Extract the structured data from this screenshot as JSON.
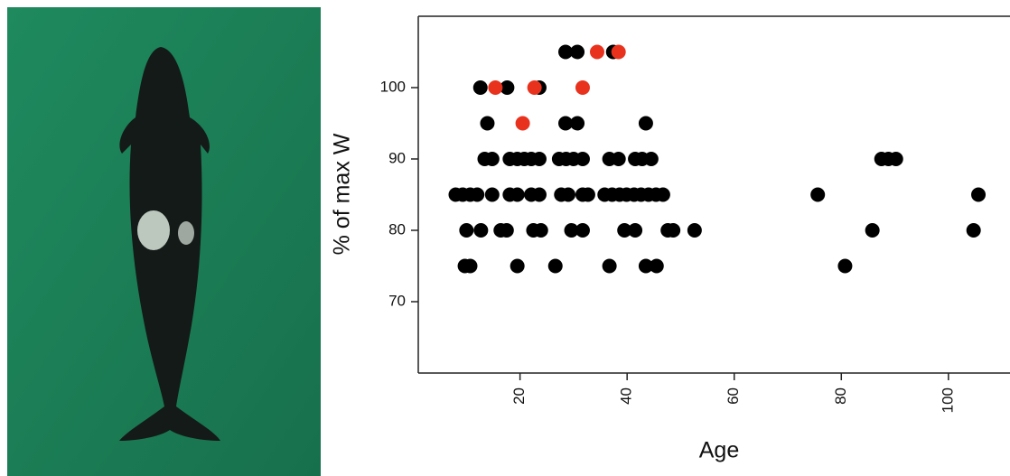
{
  "chart_data": {
    "type": "scatter",
    "xlabel": "Age",
    "ylabel": "% of max W",
    "xlim": [
      1,
      111.5
    ],
    "ylim": [
      60,
      110
    ],
    "xticks": [
      20,
      40,
      60,
      80,
      100
    ],
    "yticks": [
      70,
      80,
      90,
      100
    ],
    "series": [
      {
        "color": "#000000",
        "x": [
          28.5,
          30.7,
          37.4,
          12.6,
          17.6,
          23.6,
          13.9,
          28.5,
          30.7,
          43.5,
          13.4,
          14.8,
          18.1,
          19.5,
          20.8,
          22.1,
          23.6,
          27.3,
          28.6,
          30.0,
          31.7,
          36.7,
          38.4,
          41.5,
          42.8,
          44.5,
          87.5,
          88.8,
          90.2,
          8.0,
          9.3,
          10.7,
          12.0,
          14.8,
          18.1,
          19.5,
          22.1,
          23.6,
          27.7,
          29.0,
          31.7,
          32.7,
          35.8,
          37.2,
          38.6,
          39.9,
          41.3,
          42.6,
          44.0,
          45.4,
          46.7,
          75.6,
          105.6,
          10.0,
          12.7,
          16.4,
          17.5,
          22.5,
          23.9,
          29.6,
          31.7,
          39.5,
          41.5,
          47.6,
          48.6,
          52.6,
          85.8,
          104.7,
          9.7,
          10.7,
          19.5,
          26.6,
          36.7,
          43.5,
          45.5,
          80.7
        ],
        "values": [
          105,
          105,
          105,
          100,
          100,
          100,
          95,
          95,
          95,
          95,
          90,
          90,
          90,
          90,
          90,
          90,
          90,
          90,
          90,
          90,
          90,
          90,
          90,
          90,
          90,
          90,
          90,
          90,
          90,
          85,
          85,
          85,
          85,
          85,
          85,
          85,
          85,
          85,
          85,
          85,
          85,
          85,
          85,
          85,
          85,
          85,
          85,
          85,
          85,
          85,
          85,
          85,
          85,
          80,
          80,
          80,
          80,
          80,
          80,
          80,
          80,
          80,
          80,
          80,
          80,
          80,
          80,
          80,
          75,
          75,
          75,
          75,
          75,
          75,
          75,
          75
        ]
      },
      {
        "color": "#e8321e",
        "x": [
          34.4,
          38.4,
          15.4,
          22.7,
          31.7,
          20.5
        ],
        "values": [
          105,
          105,
          100,
          100,
          100,
          95
        ]
      }
    ]
  }
}
